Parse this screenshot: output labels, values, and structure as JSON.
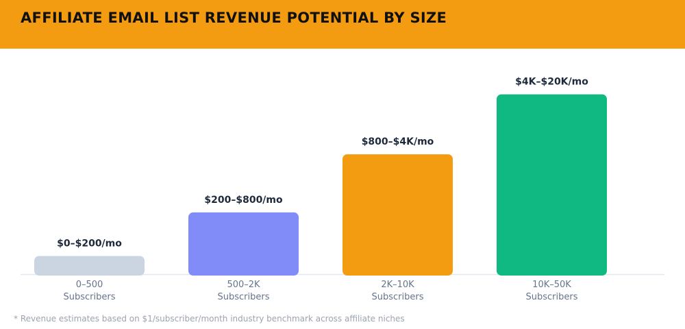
{
  "header": {
    "title": "AFFILIATE EMAIL LIST REVENUE POTENTIAL BY SIZE",
    "background": "#f39c12"
  },
  "chart_data": {
    "type": "bar",
    "title": "AFFILIATE EMAIL LIST REVENUE POTENTIAL BY SIZE",
    "categories": [
      [
        "0–500",
        "Subscribers"
      ],
      [
        "500–2K",
        "Subscribers"
      ],
      [
        "2K–10K",
        "Subscribers"
      ],
      [
        "10K–50K",
        "Subscribers"
      ]
    ],
    "data_labels": [
      "$0–$200/mo",
      "$200–$800/mo",
      "$800–$4K/mo",
      "$4K–$20K/mo"
    ],
    "values": [
      10,
      34,
      66,
      99
    ],
    "value_unit": "percent of tallest visual scale",
    "colors": [
      "#cbd5e1",
      "#818cf8",
      "#f39c12",
      "#10b981"
    ],
    "ylim": [
      0,
      100
    ],
    "grid": false,
    "legend": "none"
  },
  "footnote": "* Revenue estimates based on $1/subscriber/month industry benchmark across affiliate niches"
}
